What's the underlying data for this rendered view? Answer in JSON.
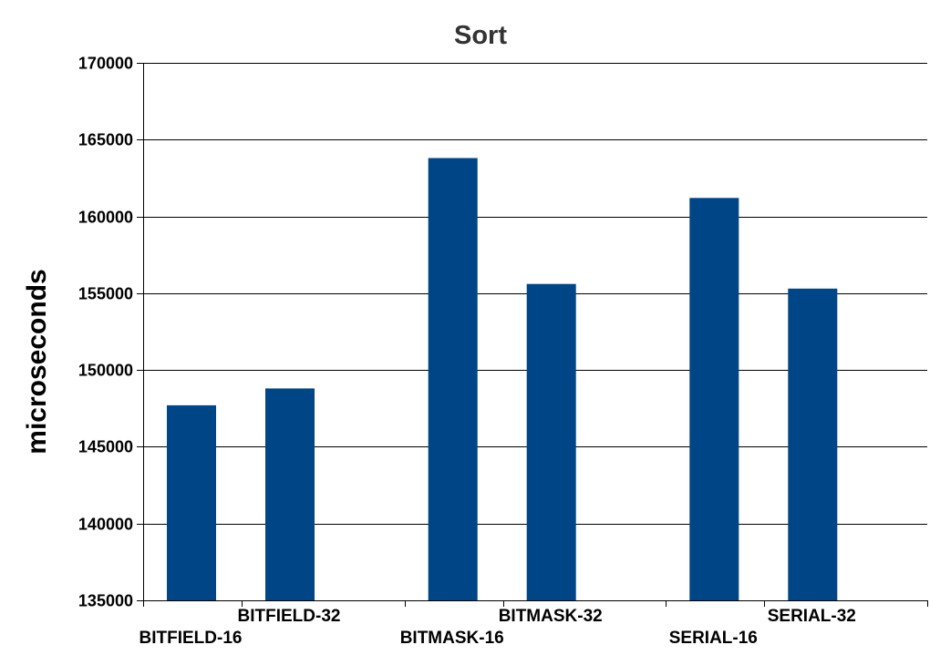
{
  "chart_data": {
    "type": "bar",
    "title": "Sort",
    "xlabel": "",
    "ylabel": "microseconds",
    "ylim": [
      135000,
      170000
    ],
    "yticks": [
      135000,
      140000,
      145000,
      150000,
      155000,
      160000,
      165000,
      170000
    ],
    "categories": [
      "BITFIELD-16",
      "BITFIELD-32",
      "BITMASK-16",
      "BITMASK-32",
      "SERIAL-16",
      "SERIAL-32"
    ],
    "values": [
      147700,
      148800,
      163800,
      155600,
      161200,
      155300
    ],
    "grid": true,
    "legend": "none",
    "colors": {
      "bar": "#004586"
    }
  }
}
